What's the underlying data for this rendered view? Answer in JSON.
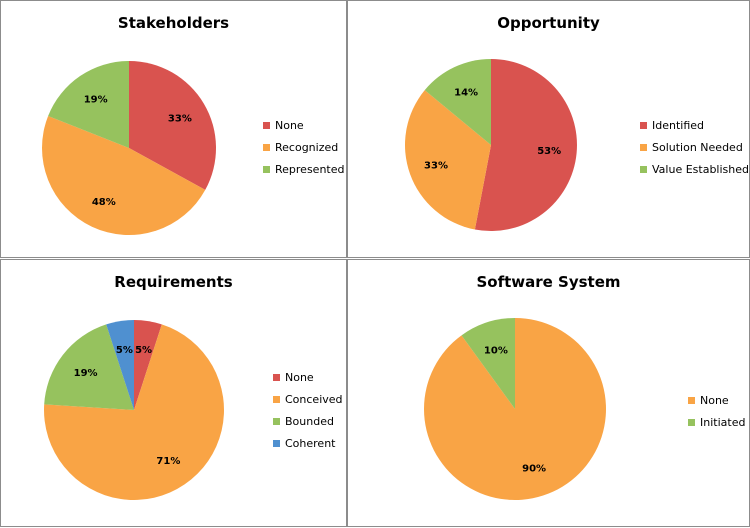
{
  "colors": {
    "red": "#d9534f",
    "orange": "#f9a445",
    "green": "#96c25e",
    "blue": "#4f90d0"
  },
  "chart_data": [
    {
      "type": "pie",
      "title": "Stakeholders",
      "categories": [
        "None",
        "Recognized",
        "Represented"
      ],
      "values": [
        33,
        48,
        19
      ],
      "labels": [
        "33%",
        "48%",
        "19%"
      ],
      "colors": [
        "#d9534f",
        "#f9a445",
        "#96c25e"
      ],
      "legend_position": "right"
    },
    {
      "type": "pie",
      "title": "Opportunity",
      "categories": [
        "Identified",
        "Solution Needed",
        "Value Established"
      ],
      "values": [
        53,
        33,
        14
      ],
      "labels": [
        "53%",
        "33%",
        "14%"
      ],
      "colors": [
        "#d9534f",
        "#f9a445",
        "#96c25e"
      ],
      "legend_position": "right"
    },
    {
      "type": "pie",
      "title": "Requirements",
      "categories": [
        "None",
        "Conceived",
        "Bounded",
        "Coherent"
      ],
      "values": [
        5,
        71,
        19,
        5
      ],
      "labels": [
        "5%",
        "71%",
        "19%",
        "5%"
      ],
      "colors": [
        "#d9534f",
        "#f9a445",
        "#96c25e",
        "#4f90d0"
      ],
      "legend_position": "right"
    },
    {
      "type": "pie",
      "title": "Software System",
      "categories": [
        "None",
        "Initiated"
      ],
      "values": [
        90,
        10
      ],
      "labels": [
        "90%",
        "10%"
      ],
      "colors": [
        "#f9a445",
        "#96c25e"
      ],
      "legend_position": "right"
    }
  ]
}
